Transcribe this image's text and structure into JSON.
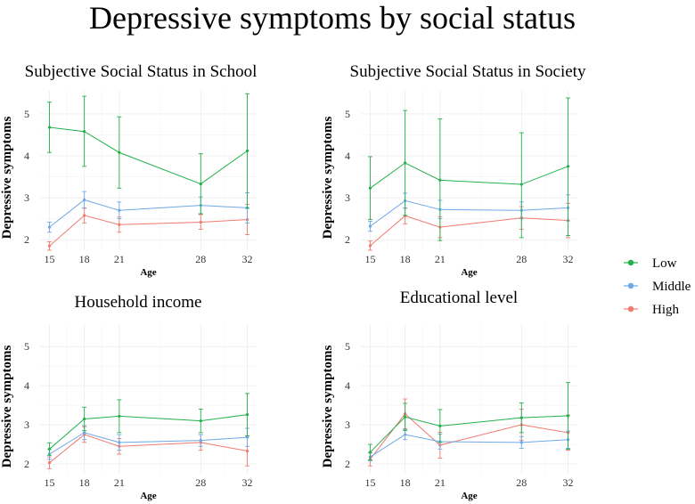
{
  "figure": {
    "title": "Depressive symptoms by social status",
    "colors": {
      "Low": "#22b14c",
      "Middle": "#6fa8e6",
      "High": "#f07a70",
      "grid": "#ebebeb",
      "text": "#000000"
    },
    "legend": {
      "items": [
        "Low",
        "Middle",
        "High"
      ],
      "placement": "right"
    }
  },
  "chart_data": [
    {
      "type": "line",
      "title": "Subjective Social Status in School",
      "xlabel": "Age",
      "ylabel": "Depressive symptoms",
      "xticks": [
        15,
        18,
        21,
        28,
        32
      ],
      "yticks": [
        2,
        3,
        4,
        5
      ],
      "xlim": [
        14.2,
        32.8
      ],
      "ylim": [
        1.75,
        5.55
      ],
      "series": [
        {
          "name": "Low",
          "x": [
            15,
            18,
            21,
            28,
            32
          ],
          "y": [
            4.68,
            4.58,
            4.08,
            3.33,
            4.12
          ],
          "lower": [
            4.08,
            3.75,
            3.23,
            2.62,
            2.75
          ],
          "upper": [
            5.28,
            5.42,
            4.93,
            4.05,
            5.48
          ]
        },
        {
          "name": "Middle",
          "x": [
            15,
            18,
            21,
            28,
            32
          ],
          "y": [
            2.3,
            2.95,
            2.7,
            2.82,
            2.76
          ],
          "lower": [
            2.18,
            2.75,
            2.5,
            2.62,
            2.4
          ],
          "upper": [
            2.42,
            3.15,
            2.9,
            3.02,
            3.12
          ]
        },
        {
          "name": "High",
          "x": [
            15,
            18,
            21,
            28,
            32
          ],
          "y": [
            1.85,
            2.58,
            2.36,
            2.42,
            2.48
          ],
          "lower": [
            1.75,
            2.4,
            2.18,
            2.25,
            2.12
          ],
          "upper": [
            1.95,
            2.76,
            2.54,
            2.6,
            2.84
          ]
        }
      ]
    },
    {
      "type": "line",
      "title": "Subjective Social Status in Society",
      "xlabel": "Age",
      "ylabel": "Depressive symptoms",
      "xticks": [
        15,
        18,
        21,
        28,
        32
      ],
      "yticks": [
        2,
        3,
        4,
        5
      ],
      "xlim": [
        14.2,
        32.8
      ],
      "ylim": [
        1.75,
        5.55
      ],
      "series": [
        {
          "name": "Low",
          "x": [
            15,
            18,
            21,
            28,
            32
          ],
          "y": [
            3.23,
            3.83,
            3.42,
            3.32,
            3.75
          ],
          "lower": [
            2.48,
            2.58,
            1.98,
            2.05,
            2.1
          ],
          "upper": [
            3.98,
            5.08,
            4.88,
            4.55,
            5.38
          ]
        },
        {
          "name": "Middle",
          "x": [
            15,
            18,
            21,
            28,
            32
          ],
          "y": [
            2.32,
            2.93,
            2.72,
            2.7,
            2.76
          ],
          "lower": [
            2.2,
            2.75,
            2.5,
            2.5,
            2.45
          ],
          "upper": [
            2.44,
            3.11,
            2.94,
            2.9,
            3.07
          ]
        },
        {
          "name": "High",
          "x": [
            15,
            18,
            21,
            28,
            32
          ],
          "y": [
            1.86,
            2.57,
            2.3,
            2.52,
            2.46
          ],
          "lower": [
            1.75,
            2.38,
            2.05,
            2.25,
            2.05
          ],
          "upper": [
            1.97,
            2.76,
            2.55,
            2.79,
            2.87
          ]
        }
      ]
    },
    {
      "type": "line",
      "title": "Household income",
      "xlabel": "Age",
      "ylabel": "Depressive symptoms",
      "xticks": [
        15,
        18,
        21,
        28,
        32
      ],
      "yticks": [
        2,
        3,
        4,
        5
      ],
      "xlim": [
        14.2,
        32.8
      ],
      "ylim": [
        1.75,
        5.55
      ],
      "series": [
        {
          "name": "Low",
          "x": [
            15,
            18,
            21,
            28,
            32
          ],
          "y": [
            2.38,
            3.15,
            3.22,
            3.1,
            3.26
          ],
          "lower": [
            2.22,
            2.85,
            2.8,
            2.8,
            2.72
          ],
          "upper": [
            2.54,
            3.45,
            3.64,
            3.4,
            3.8
          ]
        },
        {
          "name": "Middle",
          "x": [
            15,
            18,
            21,
            28,
            32
          ],
          "y": [
            2.25,
            2.8,
            2.55,
            2.6,
            2.68
          ],
          "lower": [
            2.12,
            2.62,
            2.35,
            2.45,
            2.45
          ],
          "upper": [
            2.38,
            2.98,
            2.75,
            2.75,
            2.91
          ]
        },
        {
          "name": "High",
          "x": [
            15,
            18,
            21,
            28,
            32
          ],
          "y": [
            2.03,
            2.75,
            2.45,
            2.55,
            2.33
          ],
          "lower": [
            1.88,
            2.55,
            2.25,
            2.35,
            1.95
          ],
          "upper": [
            2.18,
            2.95,
            2.65,
            2.75,
            2.71
          ]
        }
      ]
    },
    {
      "type": "line",
      "title": "Educational level",
      "xlabel": "Age",
      "ylabel": "Depressive symptoms",
      "xticks": [
        15,
        18,
        21,
        28,
        32
      ],
      "yticks": [
        2,
        3,
        4,
        5
      ],
      "xlim": [
        14.2,
        32.8
      ],
      "ylim": [
        1.75,
        5.55
      ],
      "series": [
        {
          "name": "Low",
          "x": [
            15,
            18,
            21,
            28,
            32
          ],
          "y": [
            2.3,
            3.2,
            2.97,
            3.18,
            3.23
          ],
          "lower": [
            2.1,
            2.85,
            2.55,
            2.8,
            2.38
          ],
          "upper": [
            2.5,
            3.55,
            3.39,
            3.56,
            4.08
          ]
        },
        {
          "name": "Middle",
          "x": [
            15,
            18,
            21,
            28,
            32
          ],
          "y": [
            2.18,
            2.75,
            2.57,
            2.55,
            2.62
          ],
          "lower": [
            2.08,
            2.62,
            2.38,
            2.4,
            2.4
          ],
          "upper": [
            2.28,
            2.88,
            2.76,
            2.7,
            2.84
          ]
        },
        {
          "name": "High",
          "x": [
            15,
            18,
            21,
            28,
            32
          ],
          "y": [
            2.12,
            3.28,
            2.48,
            3.0,
            2.8
          ],
          "lower": [
            1.95,
            2.9,
            2.15,
            2.6,
            2.35
          ],
          "upper": [
            2.29,
            3.66,
            2.81,
            3.4,
            3.25
          ]
        }
      ]
    }
  ]
}
